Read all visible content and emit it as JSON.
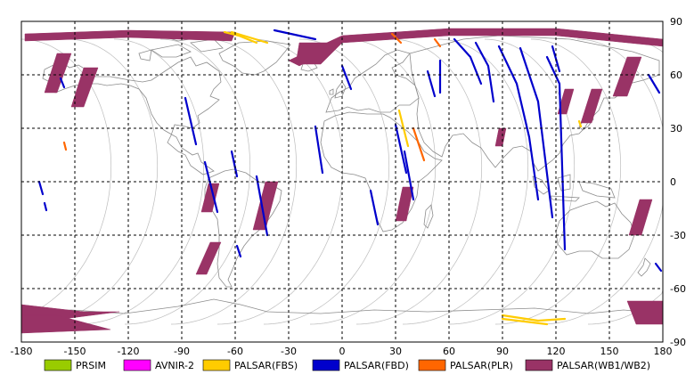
{
  "map": {
    "x_ticks": [
      "-180",
      "-150",
      "-120",
      "-90",
      "-60",
      "-30",
      "0",
      "30",
      "60",
      "90",
      "120",
      "150",
      "180"
    ],
    "y_ticks": [
      "90",
      "60",
      "30",
      "0",
      "-30",
      "-60",
      "-90"
    ],
    "lon_range": [
      -180,
      180
    ],
    "lat_range": [
      -90,
      90
    ],
    "grid": "dashed",
    "colors": {
      "grid": "#000000",
      "coast": "#8c8c8c",
      "orbit": "#bdbdbd"
    }
  },
  "legend": [
    {
      "label": "PRSIM",
      "color": "#99cc00"
    },
    {
      "label": "AVNIR-2",
      "color": "#ff00ff"
    },
    {
      "label": "PALSAR(FBS)",
      "color": "#ffcc00"
    },
    {
      "label": "PALSAR(FBD)",
      "color": "#0000cc"
    },
    {
      "label": "PALSAR(PLR)",
      "color": "#ff6600"
    },
    {
      "label": "PALSAR(WB1/WB2)",
      "color": "#993366"
    }
  ],
  "coverage": [
    {
      "sensor": "PALSAR(WB1/WB2)",
      "path": [
        [
          -178,
          83
        ],
        [
          -120,
          85
        ],
        [
          -60,
          84
        ],
        [
          -62,
          79
        ],
        [
          -120,
          81
        ],
        [
          -178,
          79
        ]
      ]
    },
    {
      "sensor": "PALSAR(WB1/WB2)",
      "path": [
        [
          -30,
          68
        ],
        [
          0,
          82
        ],
        [
          60,
          86
        ],
        [
          120,
          86
        ],
        [
          180,
          80
        ],
        [
          180,
          76
        ],
        [
          120,
          82
        ],
        [
          60,
          82
        ],
        [
          0,
          78
        ],
        [
          -24,
          65
        ]
      ]
    },
    {
      "sensor": "PALSAR(WB1/WB2)",
      "path": [
        [
          -160,
          72
        ],
        [
          -152,
          72
        ],
        [
          -160,
          50
        ],
        [
          -167,
          50
        ]
      ]
    },
    {
      "sensor": "PALSAR(WB1/WB2)",
      "path": [
        [
          -145,
          64
        ],
        [
          -137,
          64
        ],
        [
          -145,
          42
        ],
        [
          -152,
          42
        ]
      ]
    },
    {
      "sensor": "PALSAR(WB1/WB2)",
      "path": [
        [
          -24,
          78
        ],
        [
          0,
          78
        ],
        [
          -12,
          66
        ],
        [
          -26,
          66
        ]
      ]
    },
    {
      "sensor": "PALSAR(WB1/WB2)",
      "path": [
        [
          160,
          70
        ],
        [
          168,
          70
        ],
        [
          160,
          48
        ],
        [
          152,
          48
        ]
      ]
    },
    {
      "sensor": "PALSAR(WB1/WB2)",
      "path": [
        [
          125,
          52
        ],
        [
          130,
          52
        ],
        [
          126,
          38
        ],
        [
          121,
          38
        ]
      ]
    },
    {
      "sensor": "PALSAR(WB1/WB2)",
      "path": [
        [
          140,
          52
        ],
        [
          146,
          52
        ],
        [
          140,
          33
        ],
        [
          134,
          33
        ]
      ]
    },
    {
      "sensor": "PALSAR(WB1/WB2)",
      "path": [
        [
          88,
          30
        ],
        [
          92,
          30
        ],
        [
          90,
          20
        ],
        [
          86,
          20
        ]
      ]
    },
    {
      "sensor": "PALSAR(WB1/WB2)",
      "path": [
        [
          -75,
          -1
        ],
        [
          -69,
          -1
        ],
        [
          -73,
          -17
        ],
        [
          -79,
          -17
        ]
      ]
    },
    {
      "sensor": "PALSAR(WB1/WB2)",
      "path": [
        [
          -43,
          0
        ],
        [
          -36,
          0
        ],
        [
          -43,
          -27
        ],
        [
          -50,
          -27
        ]
      ]
    },
    {
      "sensor": "PALSAR(WB1/WB2)",
      "path": [
        [
          -74,
          -34
        ],
        [
          -68,
          -34
        ],
        [
          -76,
          -52
        ],
        [
          -82,
          -52
        ]
      ]
    },
    {
      "sensor": "PALSAR(WB1/WB2)",
      "path": [
        [
          34,
          -3
        ],
        [
          40,
          -3
        ],
        [
          36,
          -22
        ],
        [
          30,
          -22
        ]
      ]
    },
    {
      "sensor": "PALSAR(WB1/WB2)",
      "path": [
        [
          167,
          -10
        ],
        [
          174,
          -10
        ],
        [
          168,
          -30
        ],
        [
          161,
          -30
        ]
      ]
    },
    {
      "sensor": "PALSAR(WB1/WB2)",
      "path": [
        [
          -180,
          -69
        ],
        [
          -145,
          -73
        ],
        [
          -125,
          -73
        ],
        [
          -180,
          -80
        ]
      ]
    },
    {
      "sensor": "PALSAR(WB1/WB2)",
      "path": [
        [
          -180,
          -75
        ],
        [
          -160,
          -75
        ],
        [
          -130,
          -83
        ],
        [
          -180,
          -85
        ]
      ]
    },
    {
      "sensor": "PALSAR(WB1/WB2)",
      "path": [
        [
          160,
          -67
        ],
        [
          180,
          -67
        ],
        [
          180,
          -80
        ],
        [
          165,
          -80
        ]
      ]
    },
    {
      "sensor": "PALSAR(FBD)",
      "path": [
        [
          -38,
          85
        ],
        [
          -15,
          80
        ]
      ]
    },
    {
      "sensor": "PALSAR(FBD)",
      "path": [
        [
          -158,
          58
        ],
        [
          -156,
          53
        ]
      ]
    },
    {
      "sensor": "PALSAR(FBD)",
      "path": [
        [
          -88,
          47
        ],
        [
          -82,
          21
        ]
      ]
    },
    {
      "sensor": "PALSAR(FBD)",
      "path": [
        [
          -77,
          11
        ],
        [
          -70,
          -17
        ]
      ]
    },
    {
      "sensor": "PALSAR(FBD)",
      "path": [
        [
          -62,
          17
        ],
        [
          -59,
          3
        ]
      ]
    },
    {
      "sensor": "PALSAR(FBD)",
      "path": [
        [
          -48,
          3
        ],
        [
          -42,
          -30
        ]
      ]
    },
    {
      "sensor": "PALSAR(FBD)",
      "path": [
        [
          -59,
          -36
        ],
        [
          -57,
          -42
        ]
      ]
    },
    {
      "sensor": "PALSAR(FBD)",
      "path": [
        [
          -15,
          31
        ],
        [
          -11,
          5
        ]
      ]
    },
    {
      "sensor": "PALSAR(FBD)",
      "path": [
        [
          0,
          65
        ],
        [
          5,
          52
        ]
      ]
    },
    {
      "sensor": "PALSAR(FBD)",
      "path": [
        [
          16,
          -5
        ],
        [
          20,
          -24
        ]
      ]
    },
    {
      "sensor": "PALSAR(FBD)",
      "path": [
        [
          30,
          32
        ],
        [
          36,
          5
        ]
      ]
    },
    {
      "sensor": "PALSAR(FBD)",
      "path": [
        [
          35,
          17
        ],
        [
          40,
          -10
        ]
      ]
    },
    {
      "sensor": "PALSAR(FBD)",
      "path": [
        [
          48,
          62
        ],
        [
          52,
          48
        ]
      ]
    },
    {
      "sensor": "PALSAR(FBD)",
      "path": [
        [
          55,
          68
        ],
        [
          55,
          50
        ]
      ]
    },
    {
      "sensor": "PALSAR(FBD)",
      "path": [
        [
          63,
          80
        ],
        [
          72,
          70
        ],
        [
          78,
          55
        ]
      ]
    },
    {
      "sensor": "PALSAR(FBD)",
      "path": [
        [
          75,
          78
        ],
        [
          82,
          65
        ],
        [
          85,
          45
        ]
      ]
    },
    {
      "sensor": "PALSAR(FBD)",
      "path": [
        [
          88,
          76
        ],
        [
          98,
          55
        ],
        [
          105,
          25
        ],
        [
          110,
          -10
        ]
      ]
    },
    {
      "sensor": "PALSAR(FBD)",
      "path": [
        [
          100,
          75
        ],
        [
          110,
          45
        ],
        [
          118,
          -20
        ]
      ]
    },
    {
      "sensor": "PALSAR(FBD)",
      "path": [
        [
          115,
          70
        ],
        [
          122,
          55
        ],
        [
          125,
          -38
        ]
      ]
    },
    {
      "sensor": "PALSAR(FBD)",
      "path": [
        [
          118,
          76
        ],
        [
          122,
          62
        ]
      ]
    },
    {
      "sensor": "PALSAR(FBD)",
      "path": [
        [
          172,
          60
        ],
        [
          178,
          50
        ]
      ]
    },
    {
      "sensor": "PALSAR(FBD)",
      "path": [
        [
          -170,
          0
        ],
        [
          -168,
          -7
        ]
      ]
    },
    {
      "sensor": "PALSAR(FBD)",
      "path": [
        [
          -167,
          -12
        ],
        [
          -166,
          -16
        ]
      ]
    },
    {
      "sensor": "PALSAR(FBD)",
      "path": [
        [
          176,
          -46
        ],
        [
          179,
          -50
        ]
      ]
    },
    {
      "sensor": "PALSAR(FBS)",
      "path": [
        [
          -66,
          84
        ],
        [
          -58,
          82
        ],
        [
          -48,
          78
        ]
      ]
    },
    {
      "sensor": "PALSAR(FBS)",
      "path": [
        [
          -62,
          84
        ],
        [
          -42,
          78
        ]
      ]
    },
    {
      "sensor": "PALSAR(FBS)",
      "path": [
        [
          32,
          40
        ],
        [
          37,
          20
        ]
      ]
    },
    {
      "sensor": "PALSAR(FBS)",
      "path": [
        [
          90,
          -75
        ],
        [
          110,
          -78
        ],
        [
          125,
          -77
        ]
      ]
    },
    {
      "sensor": "PALSAR(FBS)",
      "path": [
        [
          90,
          -77
        ],
        [
          115,
          -80
        ]
      ]
    },
    {
      "sensor": "PALSAR(FBS)",
      "path": [
        [
          133,
          34
        ],
        [
          134,
          31
        ]
      ]
    },
    {
      "sensor": "PALSAR(PLR)",
      "path": [
        [
          28,
          83
        ],
        [
          33,
          78
        ]
      ]
    },
    {
      "sensor": "PALSAR(PLR)",
      "path": [
        [
          52,
          80
        ],
        [
          55,
          76
        ]
      ]
    },
    {
      "sensor": "PALSAR(PLR)",
      "path": [
        [
          40,
          30
        ],
        [
          46,
          12
        ]
      ]
    },
    {
      "sensor": "PALSAR(PLR)",
      "path": [
        [
          -156,
          22
        ],
        [
          -155,
          18
        ]
      ]
    }
  ]
}
